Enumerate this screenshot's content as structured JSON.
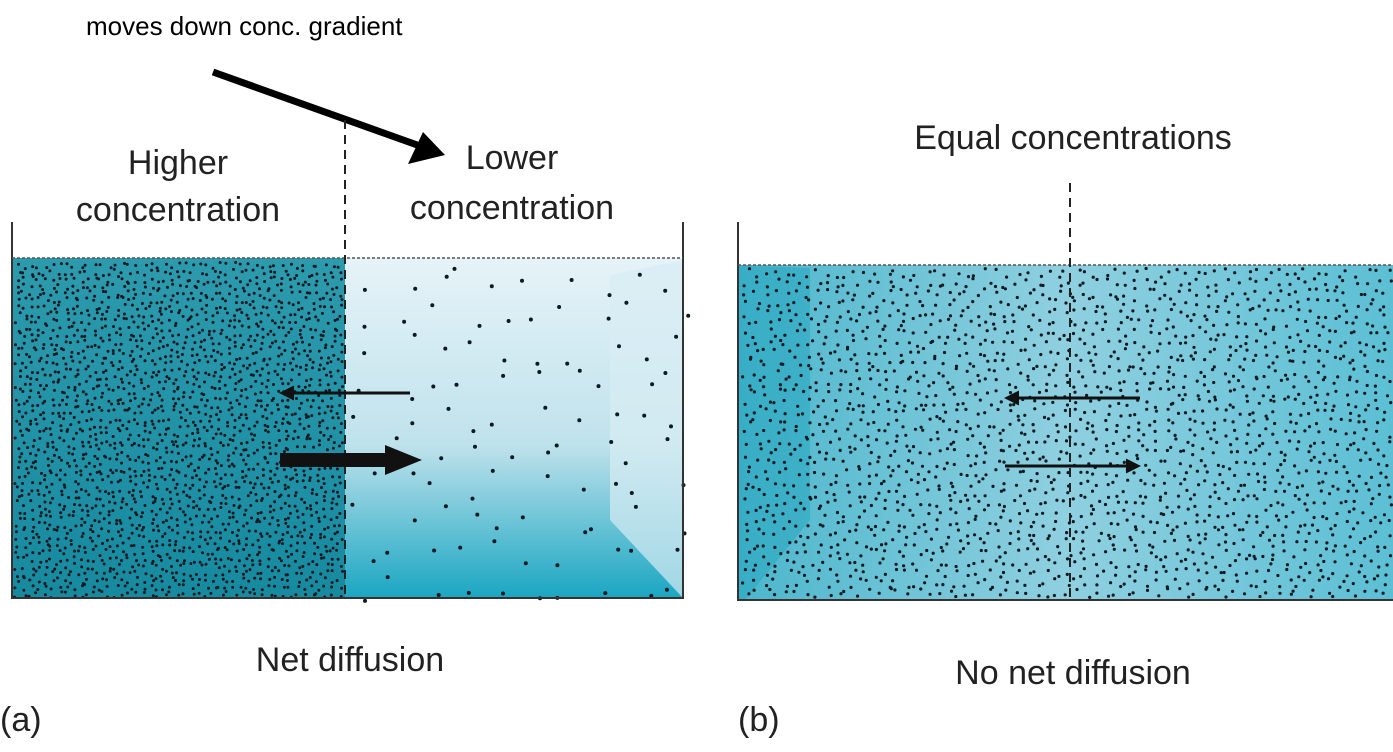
{
  "annotation": "moves down conc. gradient",
  "panel_a": {
    "left_label": [
      "Higher",
      "concentration"
    ],
    "right_label": [
      "Lower",
      "concentration"
    ],
    "caption": "Net diffusion",
    "tag": "(a)"
  },
  "panel_b": {
    "top_label": "Equal concentrations",
    "caption": "No net diffusion",
    "tag": "(b)"
  }
}
